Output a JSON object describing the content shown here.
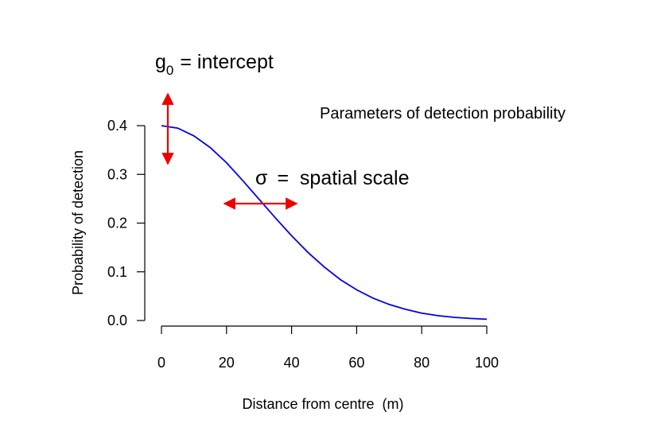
{
  "chart_data": {
    "type": "line",
    "title": "",
    "xlabel": "Distance from centre  (m)",
    "ylabel": "Probability of detection",
    "xlim": [
      0,
      100
    ],
    "ylim": [
      0,
      0.4
    ],
    "x_ticks": [
      "0",
      "20",
      "40",
      "60",
      "80",
      "100"
    ],
    "y_ticks": [
      "0.0",
      "0.1",
      "0.2",
      "0.3",
      "0.4"
    ],
    "grid": false,
    "series": [
      {
        "color": "#0000ee",
        "x": [
          0,
          5,
          10,
          15,
          20,
          25,
          30,
          35,
          40,
          45,
          50,
          55,
          60,
          65,
          70,
          75,
          80,
          85,
          90,
          95,
          100
        ],
        "y": [
          0.4,
          0.395,
          0.379,
          0.355,
          0.324,
          0.287,
          0.249,
          0.211,
          0.174,
          0.14,
          0.11,
          0.084,
          0.063,
          0.046,
          0.033,
          0.023,
          0.015,
          0.01,
          0.0066,
          0.0042,
          0.0026
        ]
      }
    ],
    "annotations": {
      "g0_symbol": "g",
      "g0_subscript": "0",
      "g0_text": "= intercept",
      "sigma_symbol": "σ",
      "sigma_text": "=  spatial scale",
      "heading": "Parameters of detection probability"
    },
    "arrow_color": "#ee0000"
  }
}
